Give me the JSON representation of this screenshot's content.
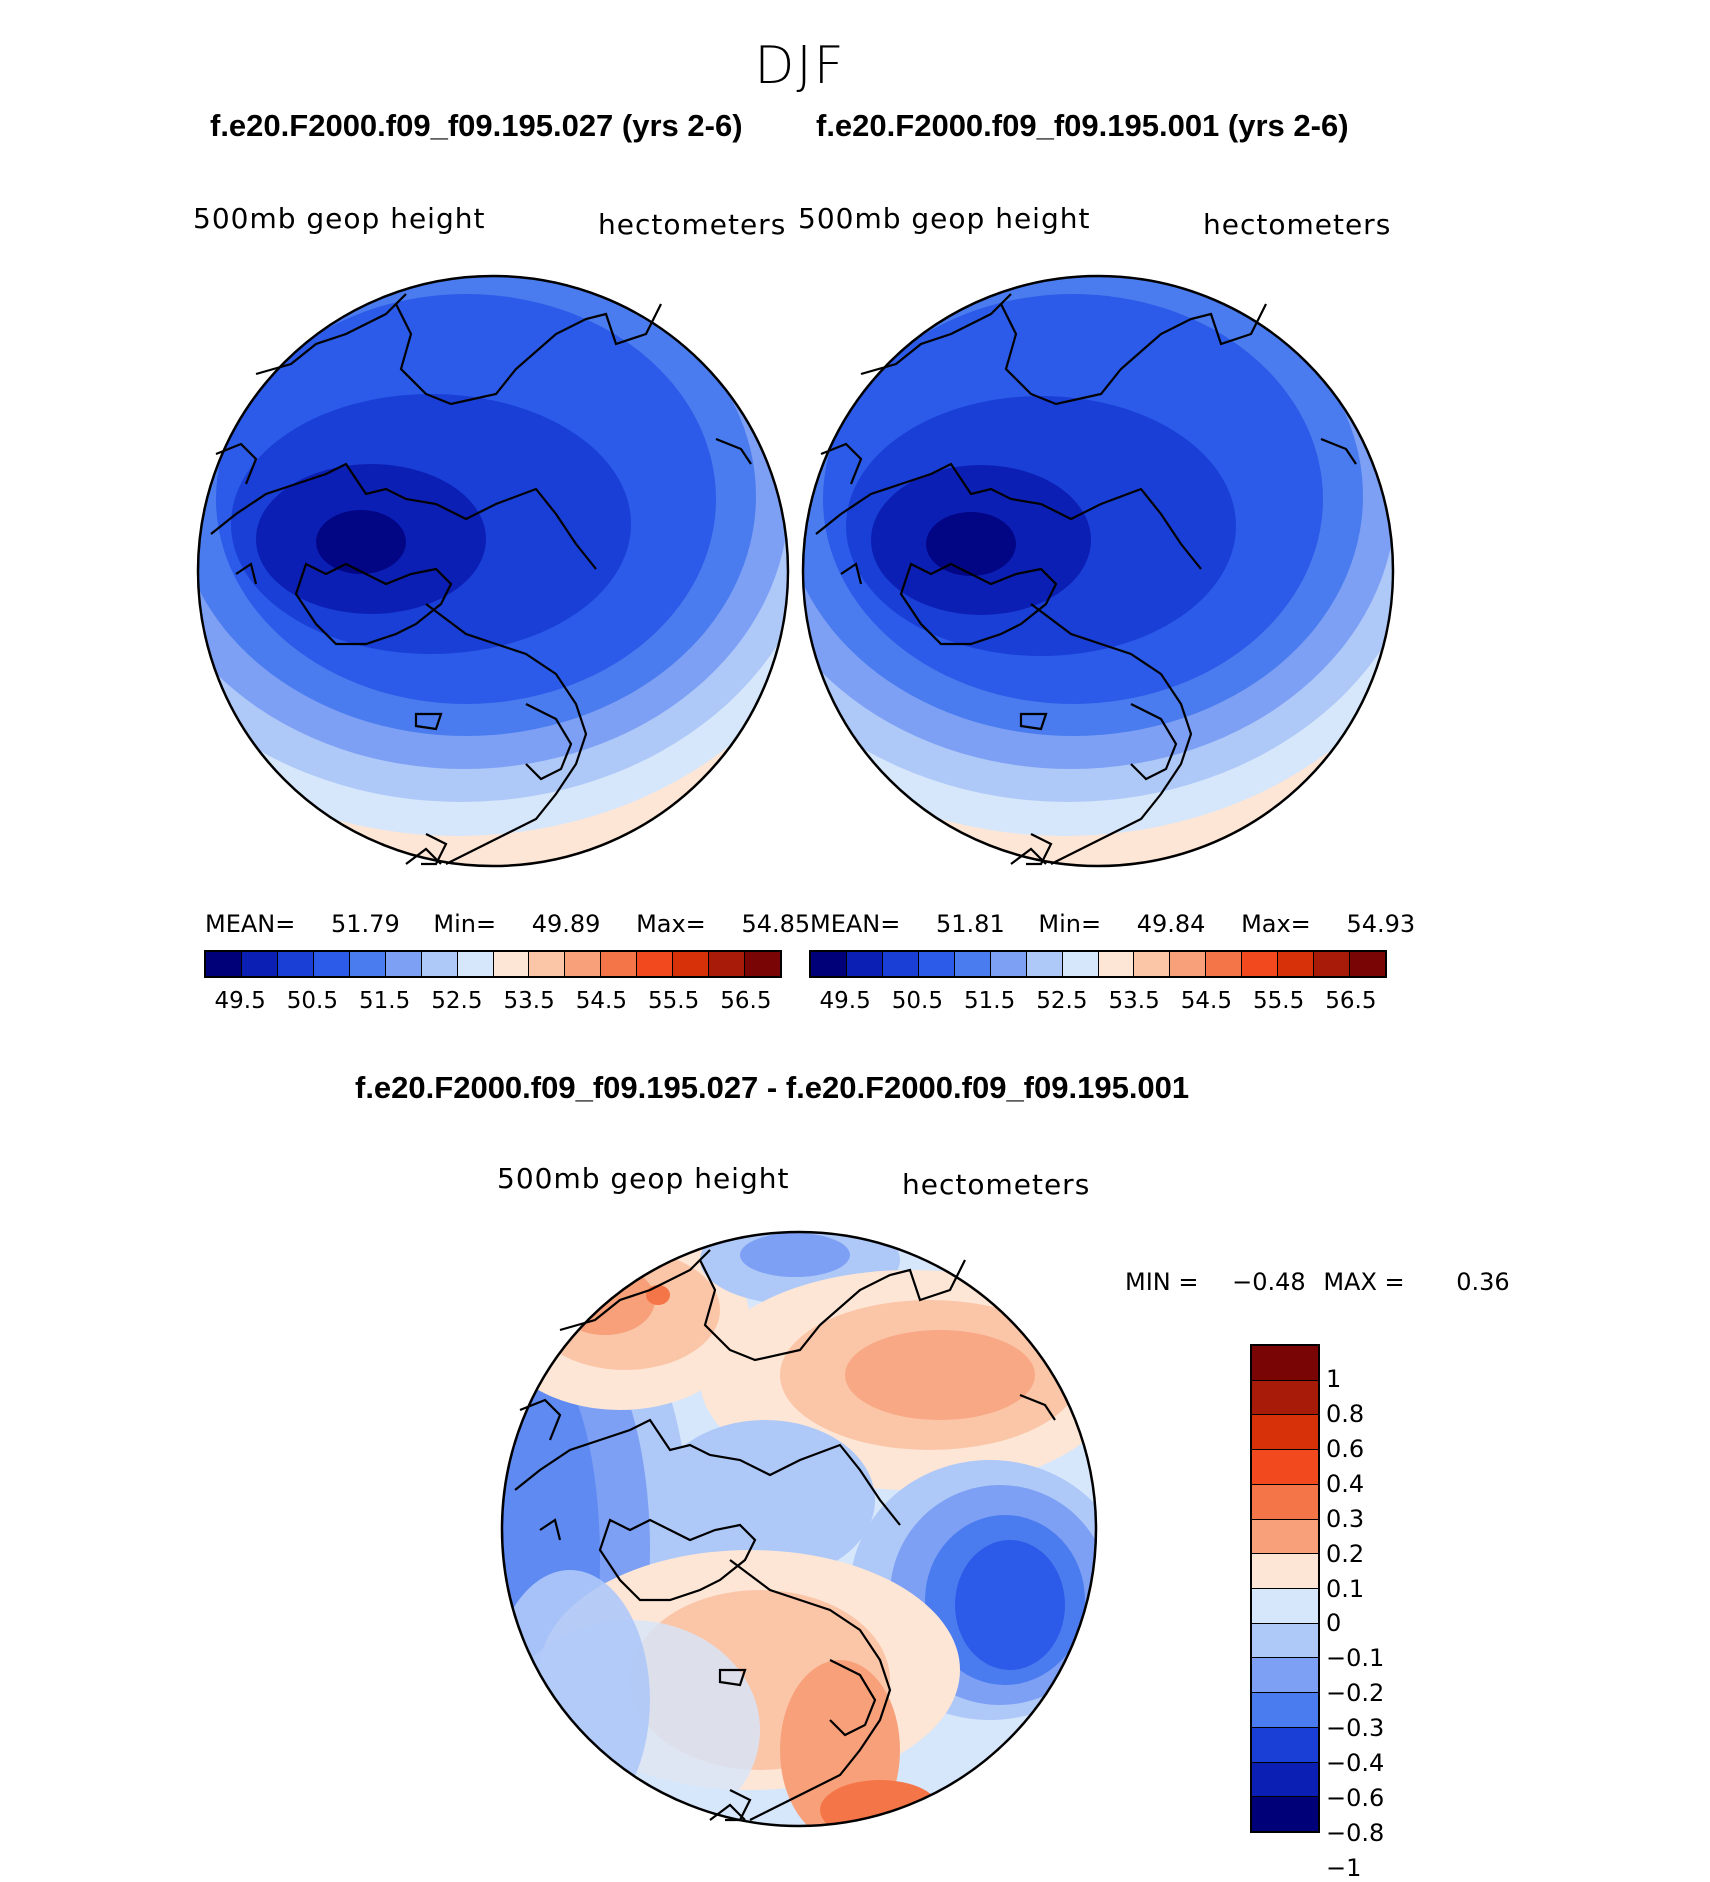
{
  "season": "DJF",
  "panels": [
    {
      "case_title": "f.e20.F2000.f09_f09.195.027 (yrs 2-6)",
      "field_label": "500mb geop height",
      "units_label": "hectometers",
      "stats": {
        "mean_label": "MEAN=",
        "mean": "51.79",
        "min_label": "Min=",
        "min": "49.89",
        "max_label": "Max=",
        "max": "54.85"
      }
    },
    {
      "case_title": "f.e20.F2000.f09_f09.195.001 (yrs 2-6)",
      "field_label": "500mb geop height",
      "units_label": "hectometers",
      "stats": {
        "mean_label": "MEAN=",
        "mean": "51.81",
        "min_label": "Min=",
        "min": "49.84",
        "max_label": "Max=",
        "max": "54.93"
      }
    }
  ],
  "colorbar_top": {
    "colors": [
      "#000079",
      "#0c1fb5",
      "#1a3fd6",
      "#2b5be8",
      "#4a7cef",
      "#7da0f5",
      "#aec8f8",
      "#d6e6fb",
      "#fde6d6",
      "#fbc5a8",
      "#f8a07a",
      "#f47648",
      "#f24a1e",
      "#d63108",
      "#a81b08",
      "#7a0505"
    ],
    "tick_labels": [
      "49.5",
      "50.5",
      "51.5",
      "52.5",
      "53.5",
      "54.5",
      "55.5",
      "56.5"
    ]
  },
  "difference": {
    "title": "f.e20.F2000.f09_f09.195.027 - f.e20.F2000.f09_f09.195.001",
    "field_label": "500mb geop height",
    "units_label": "hectometers",
    "stats": {
      "min_label": "MIN =",
      "min": "−0.48",
      "max_label": "MAX =",
      "max": "0.36"
    },
    "colorbar": {
      "colors": [
        "#7a0505",
        "#a81b08",
        "#d63108",
        "#f24a1e",
        "#f47648",
        "#f8a07a",
        "#fde6d6",
        "#d6e6fb",
        "#aec8f8",
        "#7da0f5",
        "#4a7cef",
        "#1a3fd6",
        "#0c1fb5",
        "#000079"
      ],
      "tick_labels": [
        "1",
        "0.8",
        "0.6",
        "0.4",
        "0.3",
        "0.2",
        "0.1",
        "0",
        "−0.1",
        "−0.2",
        "−0.3",
        "−0.4",
        "−0.6",
        "−0.8",
        "−1"
      ]
    }
  }
}
